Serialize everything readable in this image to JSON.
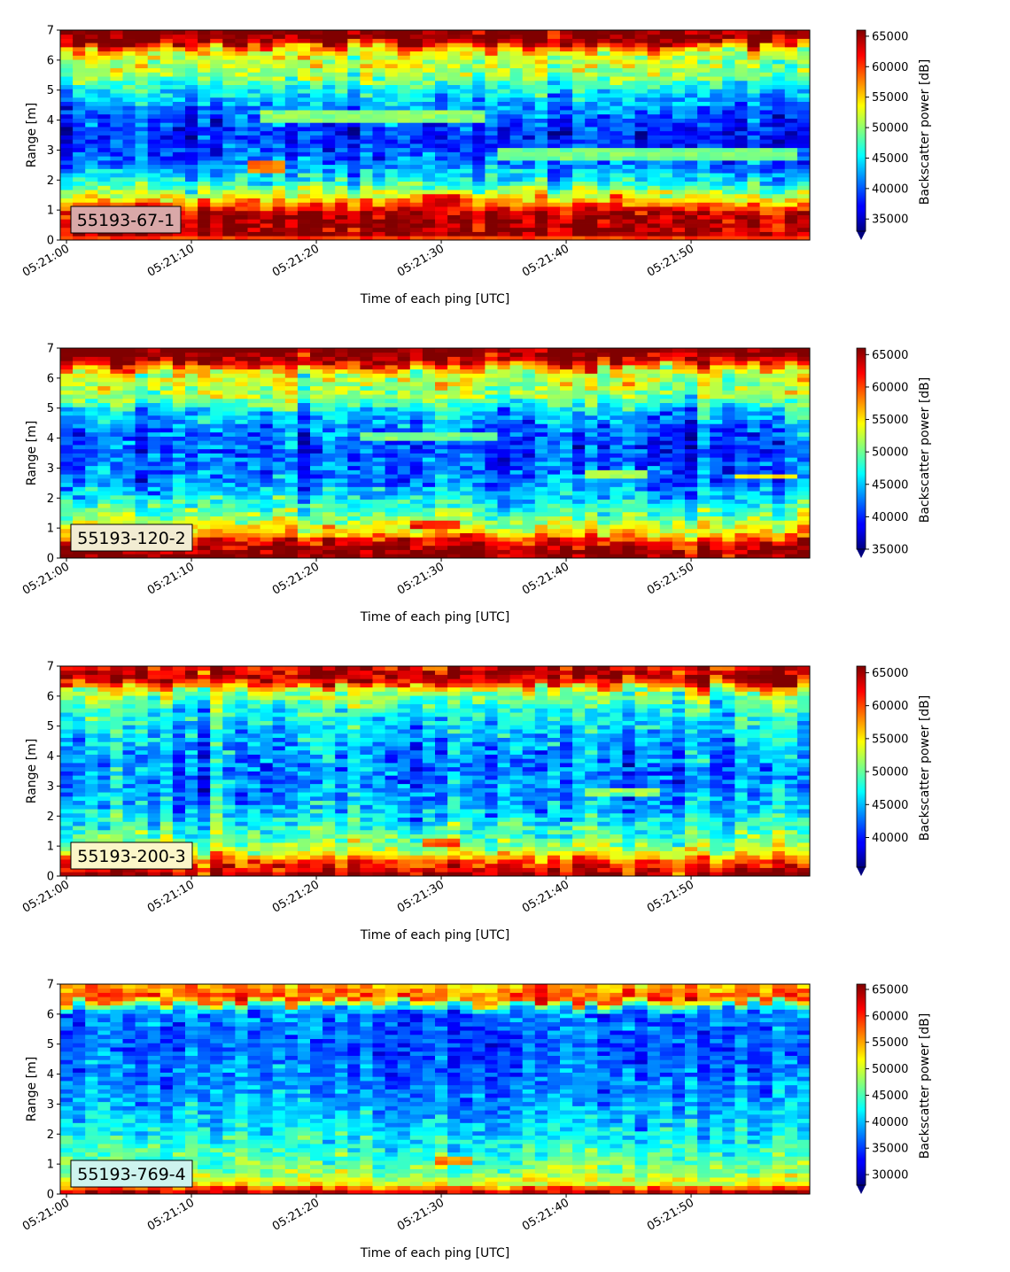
{
  "chart_data": [
    {
      "type": "heatmap",
      "label": "55193-67-1",
      "label_bg": "#d9a8a8",
      "xlabel": "Time of each ping [UTC]",
      "ylabel": "Range [m]",
      "xlim": [
        "05:20:59.5",
        "05:21:59.5"
      ],
      "ylim": [
        0,
        7
      ],
      "x_ticks": [
        "05:21:00",
        "05:21:10",
        "05:21:20",
        "05:21:30",
        "05:21:40",
        "05:21:50"
      ],
      "y_ticks": [
        0,
        1,
        2,
        3,
        4,
        5,
        6,
        7
      ],
      "colorbar": {
        "label": "Backscatter power [dB]",
        "min": 33000,
        "max": 66000,
        "ticks": [
          35000,
          40000,
          45000,
          50000,
          55000,
          60000,
          65000
        ],
        "extend": "min",
        "colormap": "jet"
      },
      "profile": [
        [
          0,
          66000
        ],
        [
          0.2,
          65000
        ],
        [
          0.9,
          64000
        ],
        [
          1.2,
          58000
        ],
        [
          1.5,
          52000
        ],
        [
          2.0,
          45000
        ],
        [
          2.7,
          40000
        ],
        [
          3.5,
          38000
        ],
        [
          4.2,
          40000
        ],
        [
          5.0,
          45000
        ],
        [
          5.5,
          50000
        ],
        [
          6.1,
          52000
        ],
        [
          6.4,
          56000
        ],
        [
          6.6,
          66000
        ],
        [
          7,
          66000
        ]
      ],
      "features": [
        {
          "t0": 15,
          "t1": 17.5,
          "r0": 2.3,
          "r1": 2.6,
          "value": 58000
        },
        {
          "t0": 29,
          "t1": 31.5,
          "r0": 1.1,
          "r1": 1.6,
          "value": 63000
        },
        {
          "t0": 44,
          "t1": 45,
          "r0": 1.1,
          "r1": 1.5,
          "value": 61000
        },
        {
          "t0": 16,
          "t1": 34,
          "r0": 3.9,
          "r1": 4.3,
          "value": 50000
        },
        {
          "t0": 35,
          "t1": 59,
          "r0": 2.7,
          "r1": 3.1,
          "value": 49000
        },
        {
          "t0": 0,
          "t1": 60,
          "r0": 0,
          "r1": 0.2,
          "value": 60000
        }
      ]
    },
    {
      "type": "heatmap",
      "label": "55193-120-2",
      "label_bg": "#f2ecd2",
      "xlabel": "Time of each ping [UTC]",
      "ylabel": "Range [m]",
      "xlim": [
        "05:20:59.5",
        "05:21:59.5"
      ],
      "ylim": [
        0,
        7
      ],
      "x_ticks": [
        "05:21:00",
        "05:21:10",
        "05:21:20",
        "05:21:30",
        "05:21:40",
        "05:21:50"
      ],
      "y_ticks": [
        0,
        1,
        2,
        3,
        4,
        5,
        6,
        7
      ],
      "colorbar": {
        "label": "Backscatter power [dB]",
        "min": 35000,
        "max": 66000,
        "ticks": [
          35000,
          40000,
          45000,
          50000,
          55000,
          60000,
          65000
        ],
        "extend": "min",
        "colormap": "jet"
      },
      "profile": [
        [
          0,
          66000
        ],
        [
          0.25,
          65000
        ],
        [
          0.55,
          63000
        ],
        [
          0.8,
          56000
        ],
        [
          1.2,
          52000
        ],
        [
          1.8,
          47000
        ],
        [
          2.5,
          43000
        ],
        [
          3.5,
          41000
        ],
        [
          4.2,
          42000
        ],
        [
          4.9,
          45000
        ],
        [
          5.4,
          51000
        ],
        [
          6.2,
          53000
        ],
        [
          6.5,
          62000
        ],
        [
          6.7,
          66000
        ],
        [
          7,
          66000
        ]
      ],
      "features": [
        {
          "t0": 28,
          "t1": 32,
          "r0": 1.0,
          "r1": 1.2,
          "value": 61000
        },
        {
          "t0": 24,
          "t1": 35,
          "r0": 3.9,
          "r1": 4.2,
          "value": 50000
        },
        {
          "t0": 42,
          "t1": 47,
          "r0": 2.7,
          "r1": 2.9,
          "value": 52000
        },
        {
          "t0": 54,
          "t1": 59,
          "r0": 2.6,
          "r1": 2.8,
          "value": 55000
        }
      ]
    },
    {
      "type": "heatmap",
      "label": "55193-200-3",
      "label_bg": "#fbf6c8",
      "xlabel": "Time of each ping [UTC]",
      "ylabel": "Range [m]",
      "xlim": [
        "05:20:59.5",
        "05:21:59.5"
      ],
      "ylim": [
        0,
        7
      ],
      "x_ticks": [
        "05:21:00",
        "05:21:10",
        "05:21:20",
        "05:21:30",
        "05:21:40",
        "05:21:50"
      ],
      "y_ticks": [
        0,
        1,
        2,
        3,
        4,
        5,
        6,
        7
      ],
      "colorbar": {
        "label": "Backscatter power [dB]",
        "min": 35500,
        "max": 66000,
        "ticks": [
          40000,
          45000,
          50000,
          55000,
          60000,
          65000
        ],
        "extend": "min",
        "colormap": "jet"
      },
      "profile": [
        [
          0,
          66000
        ],
        [
          0.15,
          63000
        ],
        [
          0.45,
          61000
        ],
        [
          0.8,
          53000
        ],
        [
          1.2,
          50000
        ],
        [
          1.8,
          47000
        ],
        [
          2.5,
          44000
        ],
        [
          3.5,
          43000
        ],
        [
          4.2,
          44000
        ],
        [
          5.0,
          46000
        ],
        [
          5.6,
          48000
        ],
        [
          6.2,
          52000
        ],
        [
          6.5,
          62000
        ],
        [
          6.7,
          65000
        ],
        [
          7,
          63000
        ]
      ],
      "features": [
        {
          "t0": 29,
          "t1": 32,
          "r0": 1.0,
          "r1": 1.2,
          "value": 60000
        },
        {
          "t0": 42,
          "t1": 48,
          "r0": 2.7,
          "r1": 2.9,
          "value": 51000
        }
      ]
    },
    {
      "type": "heatmap",
      "label": "55193-769-4",
      "label_bg": "#cdf3ee",
      "xlabel": "Time of each ping [UTC]",
      "ylabel": "Range [m]",
      "xlim": [
        "05:20:59.5",
        "05:21:59.5"
      ],
      "ylim": [
        0,
        7
      ],
      "x_ticks": [
        "05:21:00",
        "05:21:10",
        "05:21:20",
        "05:21:30",
        "05:21:40",
        "05:21:50"
      ],
      "y_ticks": [
        0,
        1,
        2,
        3,
        4,
        5,
        6,
        7
      ],
      "colorbar": {
        "label": "Backscatter power [dB]",
        "min": 28000,
        "max": 66000,
        "ticks": [
          30000,
          35000,
          40000,
          45000,
          50000,
          55000,
          60000,
          65000
        ],
        "extend": "min",
        "colormap": "jet"
      },
      "profile": [
        [
          0,
          55000
        ],
        [
          0.1,
          66000
        ],
        [
          0.3,
          52000
        ],
        [
          0.7,
          48000
        ],
        [
          1.2,
          45000
        ],
        [
          2.0,
          42000
        ],
        [
          3.0,
          39000
        ],
        [
          4.0,
          37000
        ],
        [
          5.0,
          36000
        ],
        [
          6.0,
          37000
        ],
        [
          6.3,
          45000
        ],
        [
          6.5,
          60000
        ],
        [
          6.7,
          57000
        ],
        [
          7,
          54000
        ]
      ],
      "features": [
        {
          "t0": 30,
          "t1": 33,
          "r0": 1.0,
          "r1": 1.2,
          "value": 56000
        },
        {
          "t0": 37.5,
          "t1": 38.5,
          "r0": 6.3,
          "r1": 7.0,
          "value": 62000
        }
      ]
    }
  ]
}
